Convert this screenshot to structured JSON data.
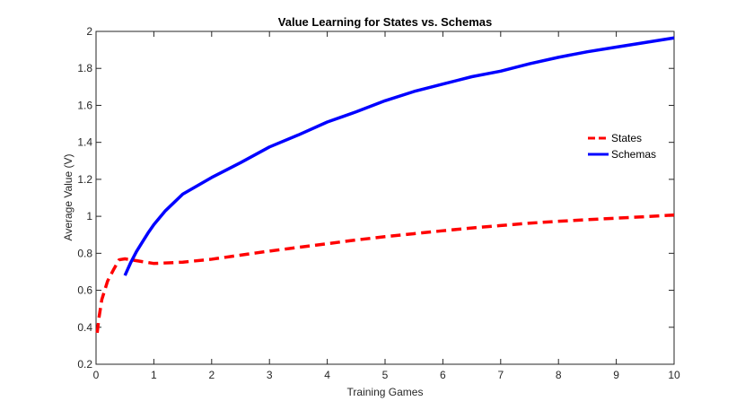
{
  "chart_data": {
    "type": "line",
    "title": "Value Learning for States vs. Schemas",
    "xlabel": "Training Games",
    "ylabel": "Average Value (V)",
    "xlim": [
      0,
      10
    ],
    "ylim": [
      0.2,
      2
    ],
    "xticks": [
      "0",
      "1",
      "2",
      "3",
      "4",
      "5",
      "6",
      "7",
      "8",
      "9",
      "10"
    ],
    "yticks": [
      "0.2",
      "0.4",
      "0.6",
      "0.8",
      "1",
      "1.2",
      "1.4",
      "1.6",
      "1.8",
      "2"
    ],
    "grid": false,
    "legend_position": "right",
    "series": [
      {
        "name": "States",
        "color": "#ff0000",
        "dash": "dashed",
        "points": [
          [
            0.02,
            0.37
          ],
          [
            0.05,
            0.45
          ],
          [
            0.1,
            0.55
          ],
          [
            0.2,
            0.65
          ],
          [
            0.3,
            0.71
          ],
          [
            0.4,
            0.765
          ],
          [
            0.5,
            0.77
          ],
          [
            0.6,
            0.765
          ],
          [
            0.8,
            0.755
          ],
          [
            1.0,
            0.745
          ],
          [
            1.5,
            0.752
          ],
          [
            2.0,
            0.768
          ],
          [
            2.5,
            0.79
          ],
          [
            3.0,
            0.812
          ],
          [
            3.5,
            0.832
          ],
          [
            4.0,
            0.852
          ],
          [
            4.5,
            0.872
          ],
          [
            5.0,
            0.89
          ],
          [
            5.5,
            0.906
          ],
          [
            6.0,
            0.922
          ],
          [
            6.5,
            0.937
          ],
          [
            7.0,
            0.95
          ],
          [
            7.5,
            0.963
          ],
          [
            8.0,
            0.973
          ],
          [
            8.5,
            0.982
          ],
          [
            9.0,
            0.99
          ],
          [
            9.5,
            0.998
          ],
          [
            10.0,
            1.007
          ]
        ]
      },
      {
        "name": "Schemas",
        "color": "#0000ff",
        "dash": "solid",
        "points": [
          [
            0.5,
            0.68
          ],
          [
            0.6,
            0.75
          ],
          [
            0.7,
            0.81
          ],
          [
            0.8,
            0.86
          ],
          [
            0.9,
            0.91
          ],
          [
            1.0,
            0.955
          ],
          [
            1.2,
            1.03
          ],
          [
            1.5,
            1.12
          ],
          [
            2.0,
            1.21
          ],
          [
            2.5,
            1.29
          ],
          [
            3.0,
            1.375
          ],
          [
            3.5,
            1.44
          ],
          [
            4.0,
            1.51
          ],
          [
            4.5,
            1.565
          ],
          [
            5.0,
            1.625
          ],
          [
            5.5,
            1.675
          ],
          [
            6.0,
            1.715
          ],
          [
            6.5,
            1.755
          ],
          [
            7.0,
            1.785
          ],
          [
            7.5,
            1.825
          ],
          [
            8.0,
            1.86
          ],
          [
            8.5,
            1.89
          ],
          [
            9.0,
            1.915
          ],
          [
            9.5,
            1.94
          ],
          [
            10.0,
            1.965
          ]
        ]
      }
    ]
  }
}
